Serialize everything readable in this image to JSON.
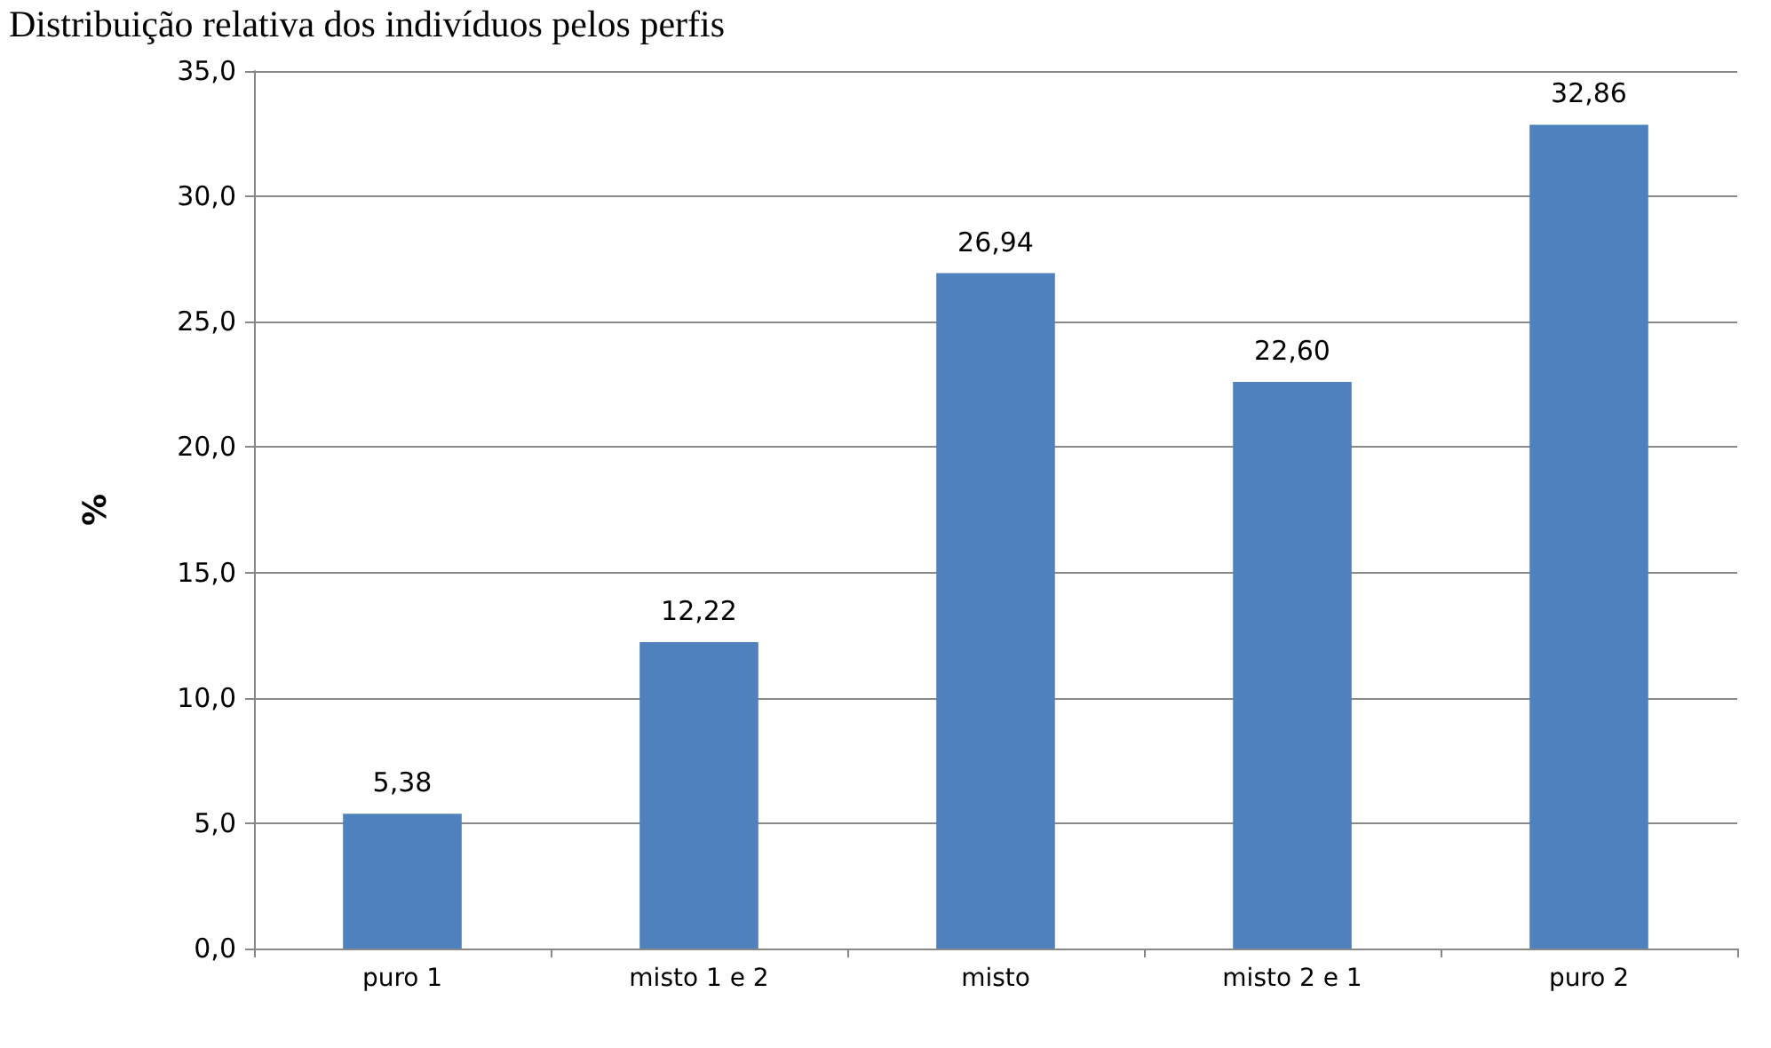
{
  "chart_data": {
    "type": "bar",
    "title": "Distribuição relativa dos indivíduos pelos perfis",
    "ylabel": "%",
    "categories": [
      "puro 1",
      "misto 1 e 2",
      "misto",
      "misto 2 e 1",
      "puro 2"
    ],
    "values": [
      5.38,
      12.22,
      26.94,
      22.6,
      32.86
    ],
    "value_labels": [
      "5,38",
      "12,22",
      "26,94",
      "22,60",
      "32,86"
    ],
    "color": "#4f81bd",
    "ylim": [
      0,
      35
    ],
    "yticks": [
      {
        "value": 0,
        "label": "0,0"
      },
      {
        "value": 5,
        "label": "5,0"
      },
      {
        "value": 10,
        "label": "10,0"
      },
      {
        "value": 15,
        "label": "15,0"
      },
      {
        "value": 20,
        "label": "20,0"
      },
      {
        "value": 25,
        "label": "25,0"
      },
      {
        "value": 30,
        "label": "30,0"
      },
      {
        "value": 35,
        "label": "35,0"
      }
    ],
    "grid": "y"
  }
}
